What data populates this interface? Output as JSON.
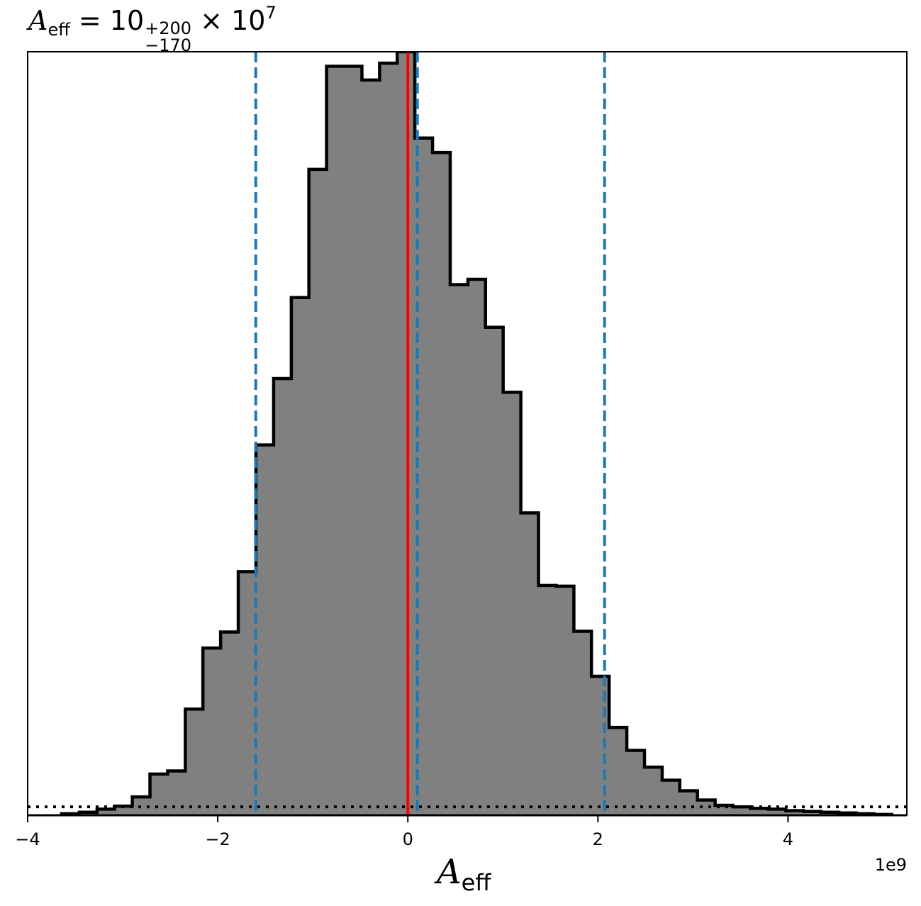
{
  "title": {
    "symbol": "A",
    "symbol_sub": "eff",
    "equals": "=",
    "base": "10",
    "plus": "+200",
    "minus": "−170",
    "times": "× 10",
    "exponent": "7"
  },
  "chart_data": {
    "type": "histogram",
    "xlabel_symbol": "A",
    "xlabel_sub": "eff",
    "offset_label": "1e9",
    "xlim": [
      -4.0,
      5.25
    ],
    "ylim": [
      0,
      1.0
    ],
    "x_ticks": [
      -4,
      -2,
      0,
      2,
      4
    ],
    "x_tick_labels": [
      "−4",
      "−2",
      "0",
      "2",
      "4"
    ],
    "y_ticks": [],
    "bin_edges": [
      -3.642,
      -3.456,
      -3.27,
      -3.085,
      -2.899,
      -2.713,
      -2.527,
      -2.341,
      -2.156,
      -1.97,
      -1.784,
      -1.598,
      -1.412,
      -1.226,
      -1.041,
      -0.855,
      -0.669,
      -0.483,
      -0.297,
      -0.112,
      0.074,
      0.26,
      0.446,
      0.632,
      0.817,
      1.003,
      1.189,
      1.375,
      1.561,
      1.747,
      1.932,
      2.118,
      2.304,
      2.49,
      2.676,
      2.861,
      3.047,
      3.233,
      3.419,
      3.605,
      3.79,
      3.976,
      4.162,
      4.348,
      4.534,
      4.719,
      4.905,
      5.091
    ],
    "bin_heights": [
      0.002,
      0.004,
      0.008,
      0.012,
      0.024,
      0.054,
      0.058,
      0.139,
      0.219,
      0.24,
      0.319,
      0.485,
      0.572,
      0.678,
      0.846,
      0.981,
      0.981,
      0.963,
      0.985,
      1.0,
      0.887,
      0.868,
      0.695,
      0.702,
      0.639,
      0.554,
      0.396,
      0.301,
      0.3,
      0.241,
      0.182,
      0.115,
      0.085,
      0.063,
      0.046,
      0.032,
      0.02,
      0.013,
      0.011,
      0.009,
      0.008,
      0.006,
      0.005,
      0.004,
      0.003,
      0.002,
      0.001
    ],
    "fill_color": "#808080",
    "edge_color": "#000000",
    "vlines": [
      {
        "x": 0.0,
        "color": "#ff0000",
        "style": "solid"
      },
      {
        "x": 0.1,
        "color": "#1f77b4",
        "style": "dashed"
      },
      {
        "x": -1.6,
        "color": "#1f77b4",
        "style": "dashed"
      },
      {
        "x": 2.07,
        "color": "#1f77b4",
        "style": "dashed"
      }
    ],
    "hline": {
      "y": 0.011,
      "color": "#000000",
      "style": "dotted"
    },
    "grid": false,
    "legend": "none"
  }
}
